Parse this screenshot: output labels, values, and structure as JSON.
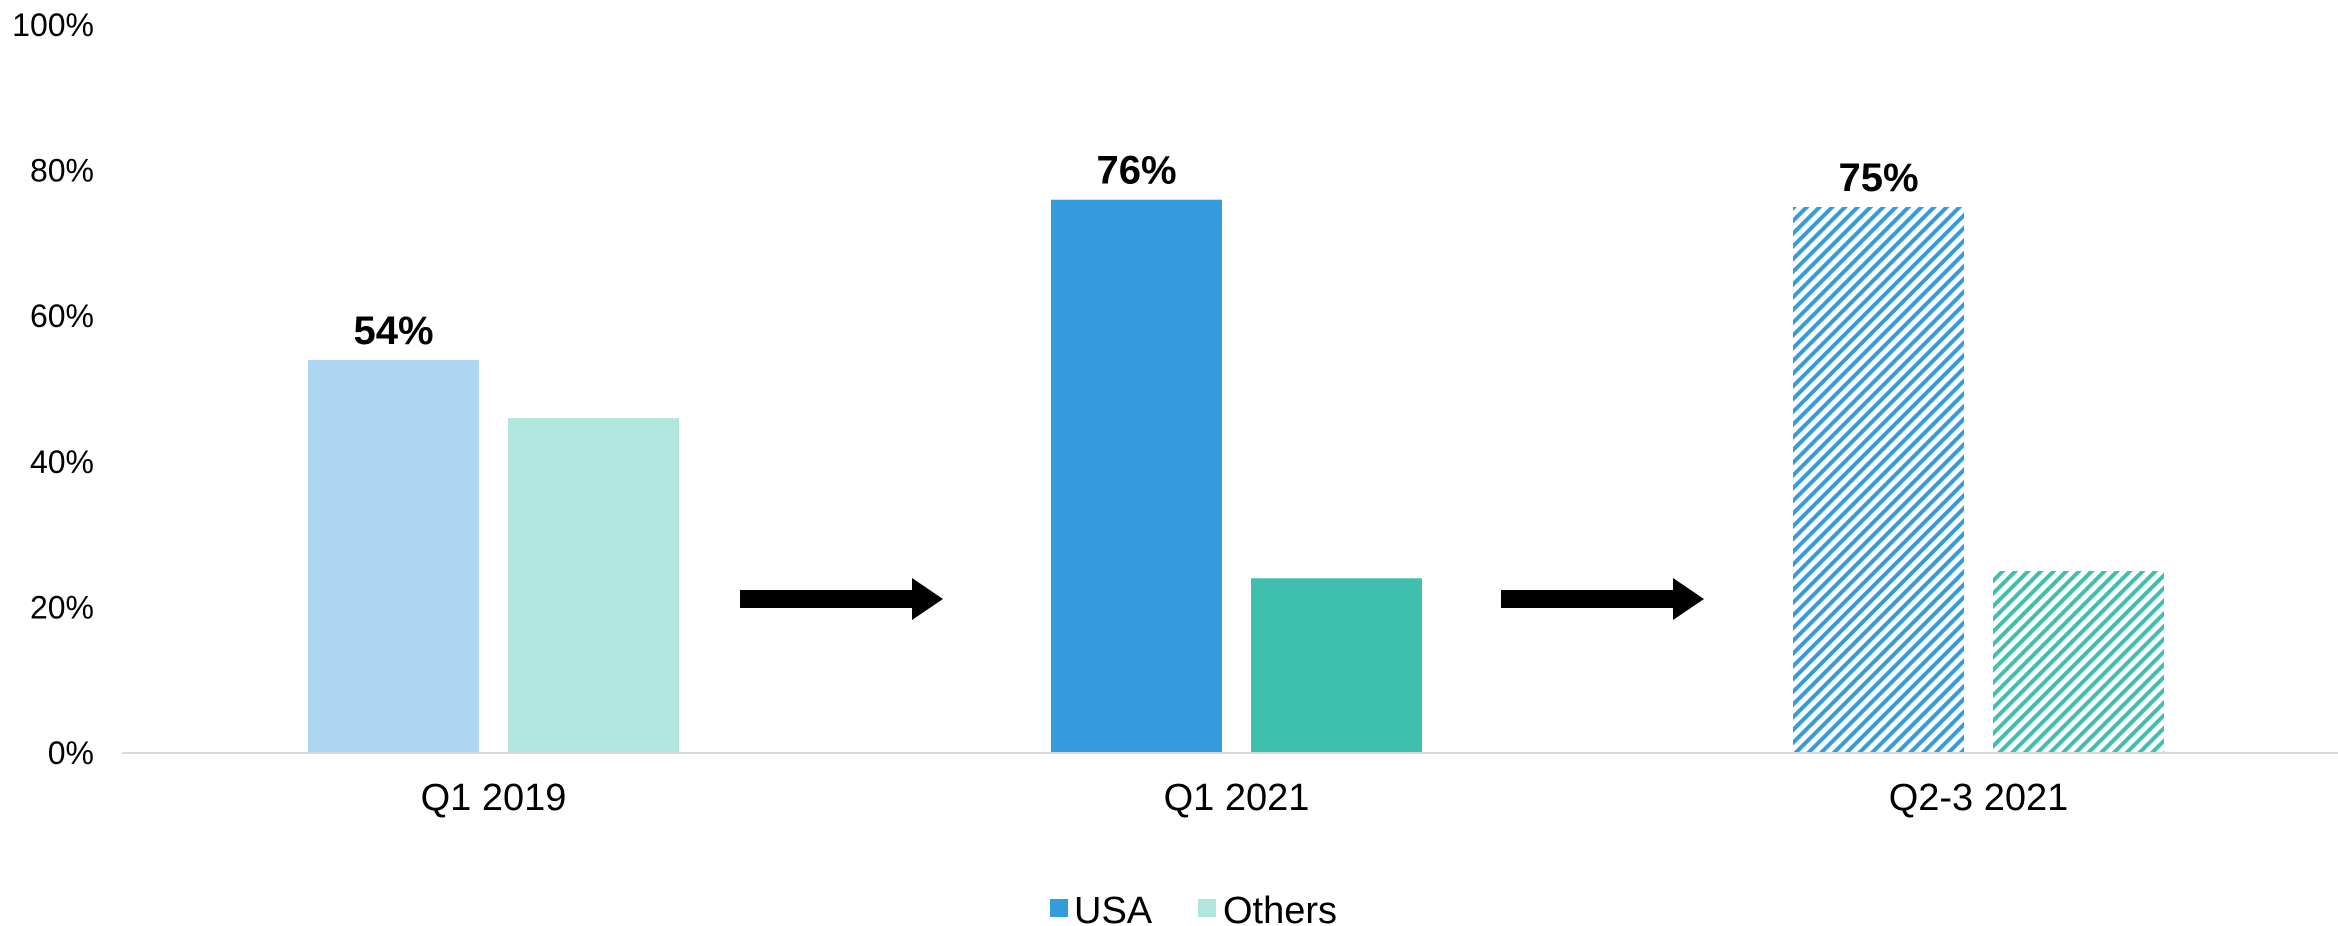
{
  "chart_data": {
    "type": "bar",
    "categories": [
      "Q1 2019",
      "Q1 2021",
      "Q2-3 2021"
    ],
    "series": [
      {
        "name": "USA",
        "values": [
          54,
          76,
          75
        ],
        "data_labels": [
          "54%",
          "76%",
          "75%"
        ]
      },
      {
        "name": "Others",
        "values": [
          46,
          24,
          25
        ],
        "data_labels": [
          "",
          "",
          ""
        ]
      }
    ],
    "yticks": [
      "0%",
      "20%",
      "40%",
      "60%",
      "80%",
      "100%"
    ],
    "ylim": [
      0,
      100
    ],
    "legend_position": "bottom",
    "grid": false,
    "styles": {
      "USA": [
        "solid-light",
        "solid",
        "hatched"
      ],
      "Others": [
        "solid-light",
        "solid",
        "hatched"
      ]
    },
    "colors": {
      "usa_light": "#aed6f0",
      "usa": "#349bdc",
      "others_light": "#b0e6dd",
      "others": "#3fbfad",
      "arrow": "#000000",
      "axis": "#d9d9d9"
    }
  }
}
